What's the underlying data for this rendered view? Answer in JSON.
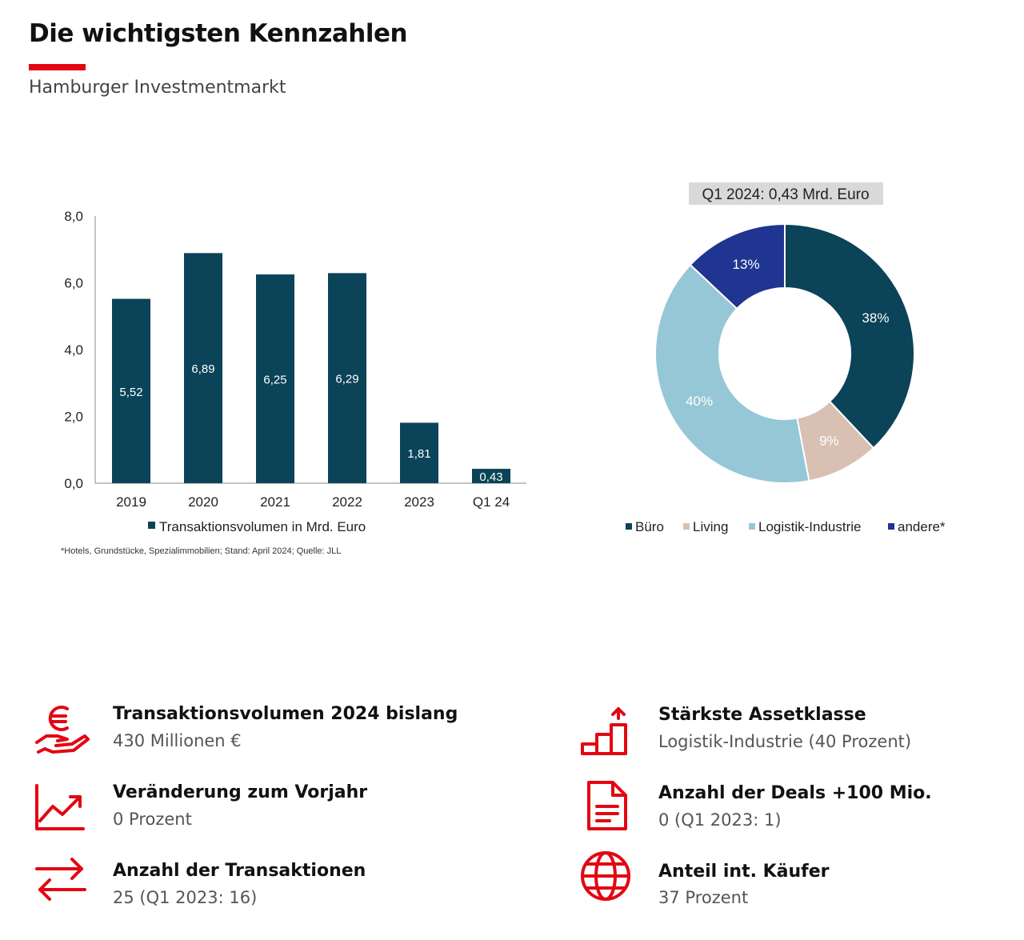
{
  "header": {
    "title": "Die wichtigsten Kennzahlen",
    "subtitle": "Hamburger Investmentmarkt"
  },
  "colors": {
    "accent_red": "#e30613",
    "buero": "#0b4358",
    "living": "#d8c1b2",
    "logistik": "#96c7d6",
    "andere": "#1f3591"
  },
  "chart_data": [
    {
      "type": "bar",
      "categories": [
        "2019",
        "2020",
        "2021",
        "2022",
        "2023",
        "Q1 24"
      ],
      "values": [
        5.52,
        6.89,
        6.25,
        6.29,
        1.81,
        0.43
      ],
      "value_labels": [
        "5,52",
        "6,89",
        "6,25",
        "6,29",
        "1,81",
        "0,43"
      ],
      "y_ticks": [
        "0,0",
        "2,0",
        "4,0",
        "6,0",
        "8,0"
      ],
      "ylim": [
        0,
        8
      ],
      "legend": "Transaktionsvolumen in Mrd. Euro",
      "footnote": "*Hotels, Grundstücke, Spezialimmobilien; Stand: April 2024; Quelle: JLL",
      "grid": false
    },
    {
      "type": "pie",
      "title": "Q1 2024: 0,43 Mrd. Euro",
      "labels": [
        "Büro",
        "Living",
        "Logistik-Industrie",
        "andere*"
      ],
      "values": [
        38,
        9,
        40,
        13
      ],
      "value_labels": [
        "38%",
        "9%",
        "40%",
        "13%"
      ],
      "colors": [
        "#0b4358",
        "#d8c1b2",
        "#96c7d6",
        "#1f3591"
      ],
      "legend_position": "bottom"
    }
  ],
  "kpis": [
    {
      "icon": "euro-hand-icon",
      "label": "Transaktionsvolumen 2024 bislang",
      "value": "430 Millionen €"
    },
    {
      "icon": "trend-chart-icon",
      "label": "Veränderung zum Vorjahr",
      "value": "0 Prozent"
    },
    {
      "icon": "transfer-arrows-icon",
      "label": "Anzahl der Transaktionen",
      "value": "25 (Q1 2023: 16)"
    },
    {
      "icon": "rising-steps-icon",
      "label": "Stärkste Assetklasse",
      "value": "Logistik-Industrie (40 Prozent)"
    },
    {
      "icon": "document-icon",
      "label": "Anzahl der Deals +100 Mio.",
      "value": "0 (Q1 2023: 1)"
    },
    {
      "icon": "globe-icon",
      "label": "Anteil int. Käufer",
      "value": "37 Prozent"
    }
  ]
}
